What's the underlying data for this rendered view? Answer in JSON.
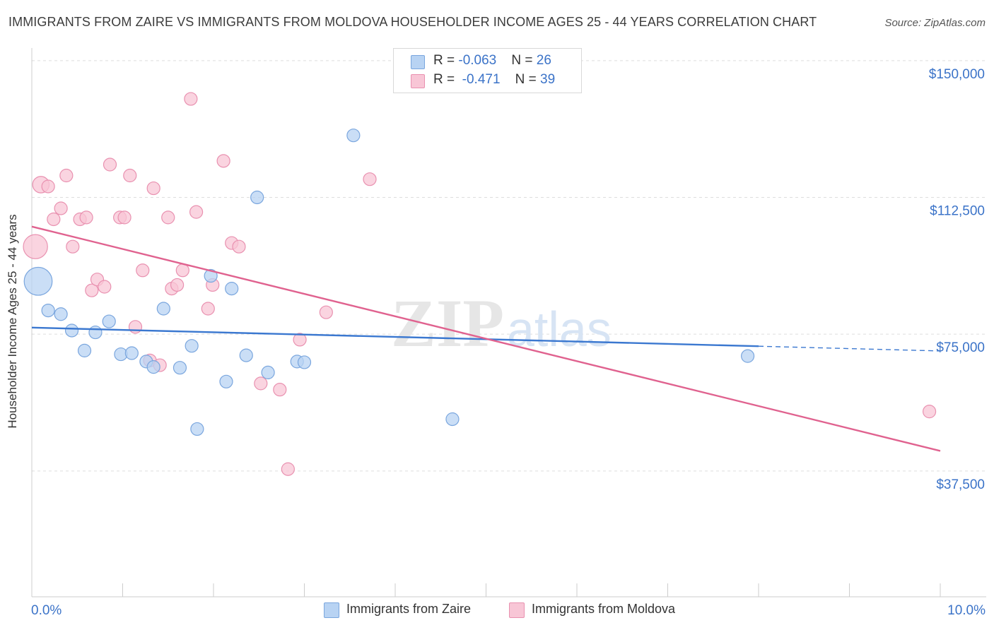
{
  "header": {
    "title": "IMMIGRANTS FROM ZAIRE VS IMMIGRANTS FROM MOLDOVA HOUSEHOLDER INCOME AGES 25 - 44 YEARS CORRELATION CHART",
    "source": "Source: ZipAtlas.com"
  },
  "legend": {
    "zaire": {
      "r_label": "R = ",
      "r_value": "-0.063",
      "n_label": "N = ",
      "n_value": "26"
    },
    "moldova": {
      "r_label": "R = ",
      "r_value": "-0.471",
      "n_label": "N = ",
      "n_value": "39"
    }
  },
  "watermark": {
    "zip": "ZIP",
    "atlas": "atlas"
  },
  "colors": {
    "zaire_fill": "#b8d3f3",
    "zaire_stroke": "#7aa6de",
    "zaire_line": "#3b78d0",
    "moldova_fill": "#f8c6d6",
    "moldova_stroke": "#e991b0",
    "moldova_line": "#e0628f",
    "axis_text": "#3b73c8",
    "grid": "#dddddd"
  },
  "chart_data": {
    "type": "scatter",
    "title": "IMMIGRANTS FROM ZAIRE VS IMMIGRANTS FROM MOLDOVA HOUSEHOLDER INCOME AGES 25 - 44 YEARS CORRELATION CHART",
    "xlabel": "",
    "ylabel": "Householder Income Ages 25 - 44 years",
    "xlim": [
      0,
      10
    ],
    "ylim": [
      3000,
      155000
    ],
    "x_tick_labels": [
      "0.0%",
      "10.0%"
    ],
    "y_ticks": [
      37500,
      75000,
      112500,
      150000
    ],
    "y_tick_labels": [
      "$37,500",
      "$75,000",
      "$112,500",
      "$150,000"
    ],
    "grid": true,
    "legend_position": "top-center",
    "series": [
      {
        "name": "Immigrants from Zaire",
        "r": -0.063,
        "n": 26,
        "points": [
          {
            "x": 0.07,
            "y": 89500,
            "s": 2.2
          },
          {
            "x": 0.18,
            "y": 81500,
            "s": 1
          },
          {
            "x": 0.32,
            "y": 80500,
            "s": 1
          },
          {
            "x": 0.44,
            "y": 76000,
            "s": 1
          },
          {
            "x": 0.58,
            "y": 70500,
            "s": 1
          },
          {
            "x": 0.7,
            "y": 75500,
            "s": 1
          },
          {
            "x": 0.85,
            "y": 78500,
            "s": 1
          },
          {
            "x": 0.98,
            "y": 69500,
            "s": 1
          },
          {
            "x": 1.1,
            "y": 69800,
            "s": 1
          },
          {
            "x": 1.26,
            "y": 67500,
            "s": 1
          },
          {
            "x": 1.34,
            "y": 66000,
            "s": 1
          },
          {
            "x": 1.45,
            "y": 82000,
            "s": 1
          },
          {
            "x": 1.63,
            "y": 65800,
            "s": 1
          },
          {
            "x": 1.76,
            "y": 71800,
            "s": 1
          },
          {
            "x": 1.82,
            "y": 49000,
            "s": 1
          },
          {
            "x": 1.97,
            "y": 91000,
            "s": 1
          },
          {
            "x": 2.14,
            "y": 62000,
            "s": 1
          },
          {
            "x": 2.2,
            "y": 87500,
            "s": 1
          },
          {
            "x": 2.36,
            "y": 69200,
            "s": 1
          },
          {
            "x": 2.48,
            "y": 112500,
            "s": 1
          },
          {
            "x": 2.6,
            "y": 64500,
            "s": 1
          },
          {
            "x": 2.92,
            "y": 67500,
            "s": 1
          },
          {
            "x": 3.0,
            "y": 67300,
            "s": 1
          },
          {
            "x": 3.54,
            "y": 129500,
            "s": 1
          },
          {
            "x": 4.63,
            "y": 51700,
            "s": 1
          },
          {
            "x": 7.88,
            "y": 69000,
            "s": 1
          }
        ],
        "trend": {
          "x0": 0.0,
          "y0": 76800,
          "x1": 8.0,
          "y1": 71700,
          "dash_x1": 10.0,
          "dash_y1": 70400
        }
      },
      {
        "name": "Immigrants from Moldova",
        "r": -0.471,
        "n": 39,
        "points": [
          {
            "x": 0.04,
            "y": 99000,
            "s": 1.9
          },
          {
            "x": 0.1,
            "y": 116000,
            "s": 1.3
          },
          {
            "x": 0.18,
            "y": 115500,
            "s": 1
          },
          {
            "x": 0.24,
            "y": 106500,
            "s": 1
          },
          {
            "x": 0.32,
            "y": 109500,
            "s": 1
          },
          {
            "x": 0.38,
            "y": 118500,
            "s": 1
          },
          {
            "x": 0.45,
            "y": 99000,
            "s": 1
          },
          {
            "x": 0.53,
            "y": 106500,
            "s": 1
          },
          {
            "x": 0.6,
            "y": 107000,
            "s": 1
          },
          {
            "x": 0.66,
            "y": 87000,
            "s": 1
          },
          {
            "x": 0.72,
            "y": 90000,
            "s": 1
          },
          {
            "x": 0.8,
            "y": 88000,
            "s": 1
          },
          {
            "x": 0.86,
            "y": 121500,
            "s": 1
          },
          {
            "x": 0.97,
            "y": 107000,
            "s": 1
          },
          {
            "x": 1.02,
            "y": 107000,
            "s": 1
          },
          {
            "x": 1.08,
            "y": 118500,
            "s": 1
          },
          {
            "x": 1.14,
            "y": 77000,
            "s": 1
          },
          {
            "x": 1.22,
            "y": 92500,
            "s": 1
          },
          {
            "x": 1.3,
            "y": 67800,
            "s": 1
          },
          {
            "x": 1.34,
            "y": 115000,
            "s": 1
          },
          {
            "x": 1.41,
            "y": 66500,
            "s": 1
          },
          {
            "x": 1.5,
            "y": 107000,
            "s": 1
          },
          {
            "x": 1.54,
            "y": 87500,
            "s": 1
          },
          {
            "x": 1.6,
            "y": 88500,
            "s": 1
          },
          {
            "x": 1.66,
            "y": 92500,
            "s": 1
          },
          {
            "x": 1.75,
            "y": 139500,
            "s": 1
          },
          {
            "x": 1.81,
            "y": 108500,
            "s": 1
          },
          {
            "x": 1.94,
            "y": 82000,
            "s": 1
          },
          {
            "x": 1.99,
            "y": 88500,
            "s": 1
          },
          {
            "x": 2.11,
            "y": 122500,
            "s": 1
          },
          {
            "x": 2.2,
            "y": 100000,
            "s": 1
          },
          {
            "x": 2.28,
            "y": 99000,
            "s": 1
          },
          {
            "x": 2.52,
            "y": 61500,
            "s": 1
          },
          {
            "x": 2.73,
            "y": 59800,
            "s": 1
          },
          {
            "x": 2.82,
            "y": 38000,
            "s": 1
          },
          {
            "x": 2.95,
            "y": 73500,
            "s": 1
          },
          {
            "x": 3.24,
            "y": 81000,
            "s": 1
          },
          {
            "x": 3.72,
            "y": 117500,
            "s": 1
          },
          {
            "x": 9.88,
            "y": 53800,
            "s": 1
          }
        ],
        "trend": {
          "x0": 0.0,
          "y0": 104500,
          "x1": 10.0,
          "y1": 43000
        }
      }
    ]
  },
  "bottom_legend": {
    "zaire_label": "Immigrants from Zaire",
    "moldova_label": "Immigrants from Moldova"
  }
}
